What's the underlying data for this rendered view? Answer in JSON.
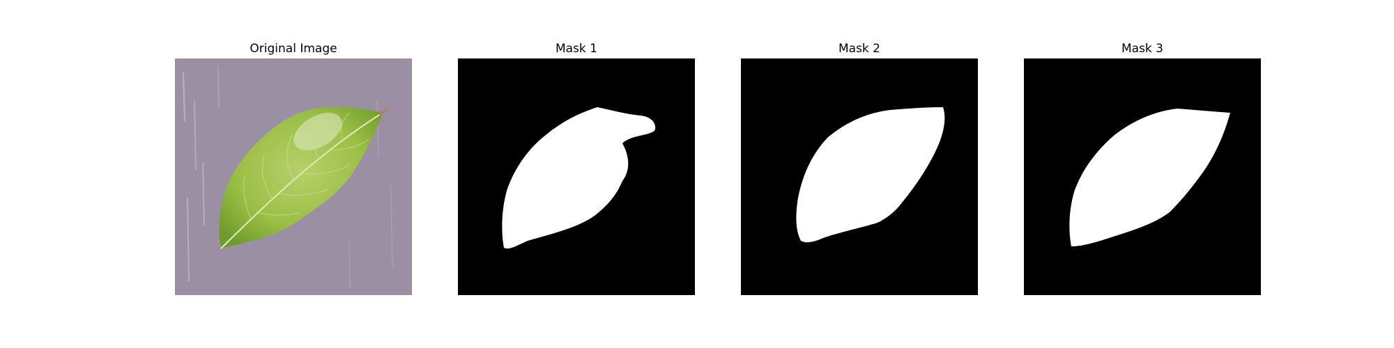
{
  "figure": {
    "panels": [
      {
        "id": "original",
        "title": "Original Image"
      },
      {
        "id": "mask-1",
        "title": "Mask 1"
      },
      {
        "id": "mask-2",
        "title": "Mask 2"
      },
      {
        "id": "mask-3",
        "title": "Mask 3"
      }
    ]
  },
  "colors": {
    "background": "#9b90a3",
    "leaf": "#9bbf46",
    "leaf_dark": "#6f9b2c",
    "mask_background": "#000000",
    "mask_foreground": "#ffffff"
  }
}
